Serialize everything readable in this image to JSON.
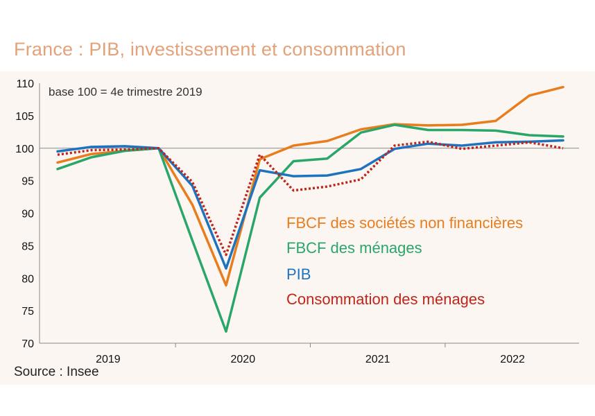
{
  "title": "France : PIB, investissement et consommation",
  "source": "Source : Insee",
  "chart_data": {
    "type": "line",
    "annotation": "base 100 = 4e trimestre 2019",
    "ylim": [
      70,
      110
    ],
    "yticks": [
      70,
      75,
      80,
      85,
      90,
      95,
      100,
      105,
      110
    ],
    "reference_line": 100,
    "x": [
      "2019T1",
      "2019T2",
      "2019T3",
      "2019T4",
      "2020T1",
      "2020T2",
      "2020T3",
      "2020T4",
      "2021T1",
      "2021T2",
      "2021T3",
      "2021T4",
      "2022T1",
      "2022T2",
      "2022T3",
      "2022T4"
    ],
    "year_labels": [
      "2019",
      "2020",
      "2021",
      "2022"
    ],
    "legend_position": "center-right",
    "series": [
      {
        "name": "FBCF des sociétés non financières",
        "color": "#e87d1e",
        "style": "solid",
        "values": [
          97.8,
          99.1,
          99.6,
          100.0,
          91.3,
          78.9,
          98.3,
          100.4,
          101.1,
          102.9,
          103.7,
          103.5,
          103.6,
          104.2,
          108.1,
          109.4
        ]
      },
      {
        "name": "FBCF des ménages",
        "color": "#2aa66a",
        "style": "solid",
        "values": [
          96.8,
          98.6,
          99.6,
          100.0,
          85.8,
          71.8,
          92.4,
          98.0,
          98.4,
          102.4,
          103.6,
          102.8,
          102.8,
          102.7,
          102.0,
          101.8
        ]
      },
      {
        "name": "PIB",
        "color": "#1e73be",
        "style": "solid",
        "values": [
          99.5,
          100.2,
          100.3,
          100.0,
          94.2,
          81.5,
          96.6,
          95.7,
          95.8,
          96.8,
          99.9,
          100.7,
          100.4,
          100.9,
          101.0,
          101.2
        ]
      },
      {
        "name": "Consommation des ménages",
        "color": "#c0241a",
        "style": "dotted",
        "values": [
          99.0,
          99.7,
          99.8,
          100.0,
          94.8,
          83.6,
          99.0,
          93.5,
          94.1,
          95.2,
          100.4,
          101.0,
          99.9,
          100.4,
          100.9,
          100.0
        ]
      }
    ]
  }
}
